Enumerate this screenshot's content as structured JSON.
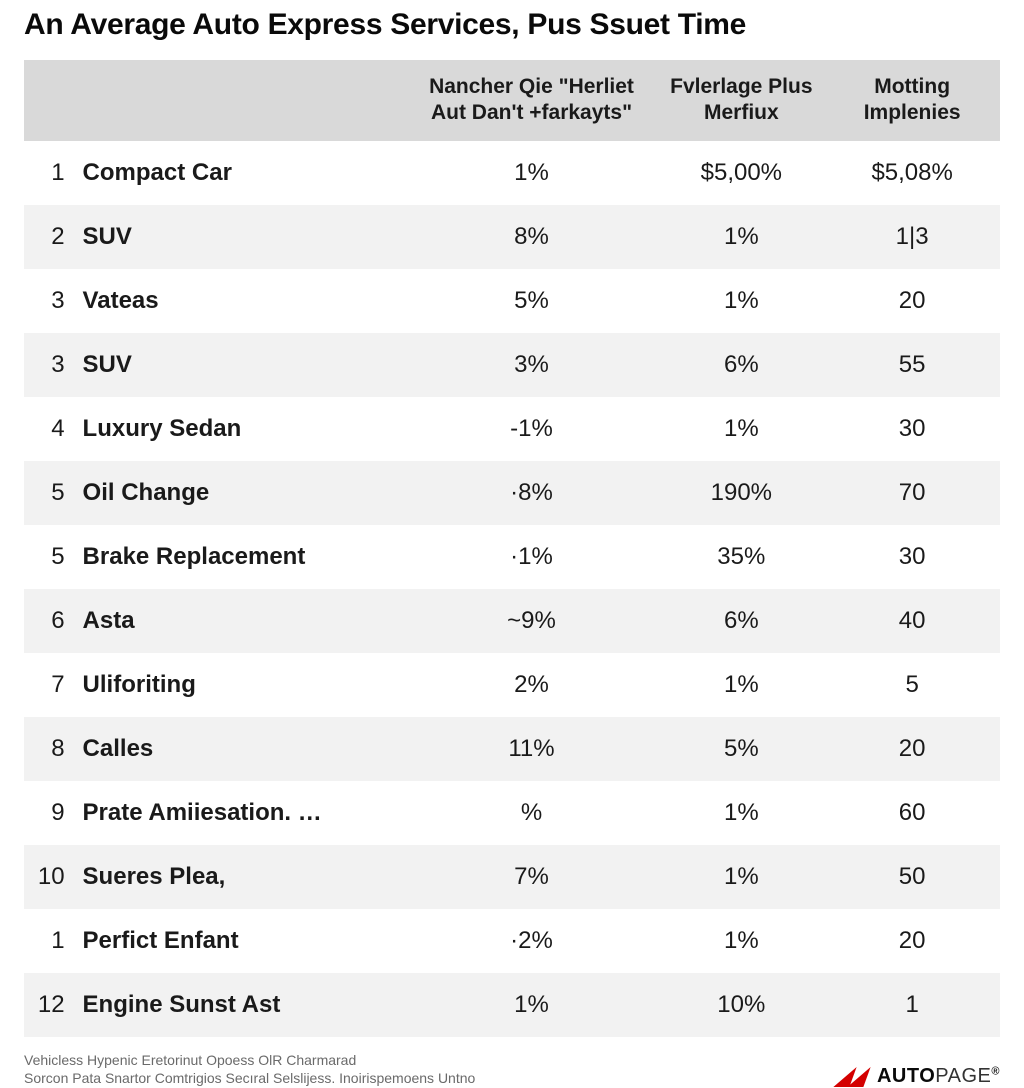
{
  "title": "An Average Auto Express Services, Pus Ssuet Time",
  "table": {
    "type": "table",
    "background_color": "#ffffff",
    "header_bg": "#d9d9d9",
    "row_alt_bg": "#f2f2f2",
    "text_color": "#1a1a1a",
    "title_fontsize": 30,
    "header_fontsize": 21,
    "cell_fontsize": 24,
    "columns": [
      {
        "key": "rank",
        "label": "",
        "width_pct": 6,
        "align": "right"
      },
      {
        "key": "name",
        "label": "",
        "width_pct": 33,
        "align": "left",
        "weight": 600
      },
      {
        "key": "c1",
        "label": "Nancher Qie \"Herliet Aut Dan't +farkayts\"",
        "width_pct": 26,
        "align": "center"
      },
      {
        "key": "c2",
        "label": "Fvlerlage Plus Merfiux",
        "width_pct": 17,
        "align": "center"
      },
      {
        "key": "c3",
        "label": "Motting Implenies",
        "width_pct": 18,
        "align": "center"
      }
    ],
    "rows": [
      {
        "rank": "1",
        "name": "Compact Car",
        "c1": "1%",
        "c2": "$5,00%",
        "c3": "$5,08%"
      },
      {
        "rank": "2",
        "name": "SUV",
        "c1": "8%",
        "c2": "1%",
        "c3": "1|3"
      },
      {
        "rank": "3",
        "name": "Vateas",
        "c1": "5%",
        "c2": "1%",
        "c3": "20"
      },
      {
        "rank": "3",
        "name": "SUV",
        "c1": "3%",
        "c2": "6%",
        "c3": "55"
      },
      {
        "rank": "4",
        "name": "Luxury Sedan",
        "c1": "-1%",
        "c2": "1%",
        "c3": "30"
      },
      {
        "rank": "5",
        "name": "Oil Change",
        "c1": "·8%",
        "c2": "190%",
        "c3": "70"
      },
      {
        "rank": "5",
        "name": "Brake Replacement",
        "c1": "·1%",
        "c2": "35%",
        "c3": "30"
      },
      {
        "rank": "6",
        "name": "Asta",
        "c1": "~9%",
        "c2": "6%",
        "c3": "40"
      },
      {
        "rank": "7",
        "name": "Uliforiting",
        "c1": "2%",
        "c2": "1%",
        "c3": "5"
      },
      {
        "rank": "8",
        "name": "Calles",
        "c1": "11%",
        "c2": "5%",
        "c3": "20"
      },
      {
        "rank": "9",
        "name": "Prate Amiiesation. …",
        "c1": "%",
        "c2": "1%",
        "c3": "60"
      },
      {
        "rank": "10",
        "name": "Sueres Plea,",
        "c1": "7%",
        "c2": "1%",
        "c3": "50"
      },
      {
        "rank": "1",
        "name": "Perfict Enfant",
        "c1": "·2%",
        "c2": "1%",
        "c3": "20"
      },
      {
        "rank": "12",
        "name": "Engine Sunst Ast",
        "c1": "1%",
        "c2": "10%",
        "c3": "1"
      }
    ]
  },
  "footer": {
    "line1": "Vehicless Hypenic Eretorinut Opoess OlR Charmarad",
    "line2": "Sorcon Pata Snartor Comtrigios Secıral Selslijess. Inoirispemoens Untno"
  },
  "logo": {
    "mark_color": "#d40000",
    "text_bold": "AUTO",
    "text_light": "PAGE",
    "reg": "®"
  }
}
